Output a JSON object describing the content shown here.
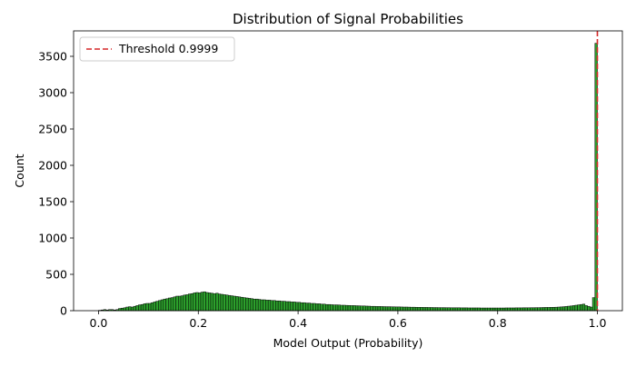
{
  "chart_data": {
    "type": "bar",
    "title": "Distribution of Signal Probabilities",
    "xlabel": "Model Output (Probability)",
    "ylabel": "Count",
    "xlim": [
      -0.05,
      1.05
    ],
    "ylim": [
      0,
      3850
    ],
    "x_ticks": [
      0.0,
      0.2,
      0.4,
      0.6,
      0.8,
      1.0
    ],
    "x_tick_labels": [
      "0.0",
      "0.2",
      "0.4",
      "0.6",
      "0.8",
      "1.0"
    ],
    "y_ticks": [
      0,
      500,
      1000,
      1500,
      2000,
      2500,
      3000,
      3500
    ],
    "y_tick_labels": [
      "0",
      "500",
      "1000",
      "1500",
      "2000",
      "2500",
      "3000",
      "3500"
    ],
    "bin_start": 0.0,
    "bin_width": 0.005,
    "bar_color": "#2ca02c",
    "bar_edge_color": "#000000",
    "threshold": {
      "value": 0.9999,
      "label": "Threshold 0.9999",
      "color": "#d62728",
      "style": "dashed"
    },
    "legend_position": "top-left",
    "grid": false,
    "counts": [
      5,
      10,
      15,
      10,
      15,
      15,
      10,
      15,
      30,
      35,
      40,
      50,
      55,
      50,
      60,
      70,
      80,
      85,
      95,
      100,
      100,
      110,
      120,
      130,
      140,
      150,
      160,
      165,
      175,
      180,
      190,
      200,
      200,
      205,
      215,
      220,
      230,
      235,
      245,
      250,
      245,
      255,
      260,
      250,
      245,
      240,
      235,
      240,
      230,
      225,
      220,
      215,
      210,
      205,
      200,
      195,
      190,
      185,
      180,
      175,
      170,
      165,
      160,
      160,
      155,
      150,
      150,
      145,
      145,
      140,
      140,
      135,
      135,
      130,
      130,
      125,
      125,
      120,
      120,
      115,
      115,
      110,
      110,
      105,
      105,
      100,
      100,
      95,
      95,
      90,
      90,
      85,
      85,
      82,
      80,
      80,
      78,
      75,
      75,
      73,
      72,
      70,
      70,
      68,
      67,
      65,
      65,
      63,
      62,
      60,
      60,
      58,
      58,
      57,
      56,
      55,
      55,
      54,
      53,
      52,
      52,
      51,
      50,
      50,
      49,
      48,
      48,
      47,
      46,
      46,
      45,
      45,
      44,
      44,
      43,
      43,
      42,
      42,
      42,
      41,
      41,
      40,
      40,
      40,
      40,
      39,
      39,
      39,
      38,
      38,
      38,
      38,
      38,
      37,
      37,
      37,
      37,
      37,
      37,
      37,
      37,
      37,
      37,
      38,
      38,
      38,
      38,
      39,
      39,
      39,
      40,
      40,
      40,
      41,
      41,
      42,
      42,
      43,
      44,
      45,
      45,
      46,
      47,
      48,
      50,
      52,
      55,
      58,
      62,
      65,
      70,
      75,
      80,
      85,
      90,
      70,
      60,
      50,
      180,
      3680
    ]
  }
}
